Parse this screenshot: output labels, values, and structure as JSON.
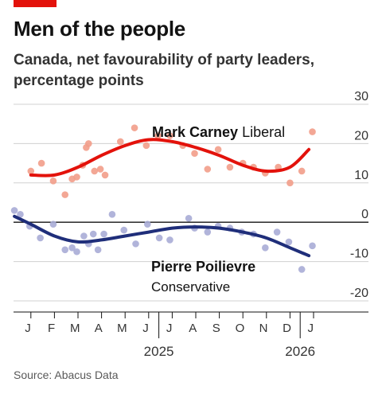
{
  "header": {
    "title": "Men of the people",
    "subtitle": "Canada, net favourability of party leaders, percentage points"
  },
  "source": "Source: Abacus Data",
  "colors": {
    "accent": "#e3120b",
    "carney_line": "#e3120b",
    "carney_points": "#f29d8a",
    "poilievre_line": "#1f2e7a",
    "poilievre_points": "#a9acd6",
    "gridline": "#d0d0d0",
    "zero_line": "#121212"
  },
  "chart_data": {
    "type": "scatter",
    "x_unit": "month_index (0 = start of Jan 2025)",
    "xlim": [
      -0.3,
      12.4
    ],
    "ylim": [
      -20,
      30
    ],
    "y_ticks": [
      30,
      20,
      10,
      0,
      -10,
      -20
    ],
    "y_tick_labels": [
      "30",
      "20",
      "10",
      "0",
      "-10",
      "-20"
    ],
    "x_month_labels": [
      "J",
      "F",
      "M",
      "A",
      "M",
      "J",
      "J",
      "A",
      "S",
      "O",
      "N",
      "D",
      "J"
    ],
    "x_year_labels": [
      {
        "label": "2025",
        "month": 6
      },
      {
        "label": "2026",
        "month": 12
      }
    ],
    "grid": true,
    "series": [
      {
        "name": "Mark Carney",
        "party": "Liberal",
        "points": [
          {
            "x": 0.5,
            "y": 13
          },
          {
            "x": 0.95,
            "y": 15
          },
          {
            "x": 1.45,
            "y": 10.5
          },
          {
            "x": 1.95,
            "y": 7
          },
          {
            "x": 2.25,
            "y": 11
          },
          {
            "x": 2.45,
            "y": 11.5
          },
          {
            "x": 2.7,
            "y": 14.5
          },
          {
            "x": 2.85,
            "y": 19
          },
          {
            "x": 2.95,
            "y": 20
          },
          {
            "x": 3.2,
            "y": 13
          },
          {
            "x": 3.45,
            "y": 13.5
          },
          {
            "x": 3.65,
            "y": 12
          },
          {
            "x": 4.3,
            "y": 20.5
          },
          {
            "x": 4.9,
            "y": 24
          },
          {
            "x": 5.4,
            "y": 19.5
          },
          {
            "x": 5.9,
            "y": 22
          },
          {
            "x": 6.4,
            "y": 22
          },
          {
            "x": 6.95,
            "y": 19.5
          },
          {
            "x": 7.45,
            "y": 17.5
          },
          {
            "x": 8.0,
            "y": 13.5
          },
          {
            "x": 8.45,
            "y": 18.5
          },
          {
            "x": 8.95,
            "y": 14
          },
          {
            "x": 9.5,
            "y": 15
          },
          {
            "x": 9.95,
            "y": 14
          },
          {
            "x": 10.45,
            "y": 12.5
          },
          {
            "x": 11.0,
            "y": 14
          },
          {
            "x": 11.5,
            "y": 10
          },
          {
            "x": 12.0,
            "y": 13
          },
          {
            "x": 12.45,
            "y": 23
          }
        ],
        "trend": [
          {
            "x": 0.5,
            "y": 12
          },
          {
            "x": 1.5,
            "y": 12
          },
          {
            "x": 2.5,
            "y": 14
          },
          {
            "x": 3.5,
            "y": 17
          },
          {
            "x": 4.5,
            "y": 19.5
          },
          {
            "x": 5.5,
            "y": 21
          },
          {
            "x": 6.5,
            "y": 20.5
          },
          {
            "x": 7.5,
            "y": 19
          },
          {
            "x": 8.5,
            "y": 17
          },
          {
            "x": 9.5,
            "y": 14.5
          },
          {
            "x": 10.5,
            "y": 13
          },
          {
            "x": 11.5,
            "y": 14
          },
          {
            "x": 12.3,
            "y": 18.5
          }
        ]
      },
      {
        "name": "Pierre Poilievre",
        "party": "Conservative",
        "points": [
          {
            "x": -0.2,
            "y": 3
          },
          {
            "x": 0.05,
            "y": 2
          },
          {
            "x": 0.45,
            "y": -1
          },
          {
            "x": 0.9,
            "y": -4
          },
          {
            "x": 1.45,
            "y": -0.5
          },
          {
            "x": 1.95,
            "y": -7
          },
          {
            "x": 2.25,
            "y": -6.5
          },
          {
            "x": 2.45,
            "y": -7.5
          },
          {
            "x": 2.75,
            "y": -3.5
          },
          {
            "x": 2.95,
            "y": -5.5
          },
          {
            "x": 3.15,
            "y": -3
          },
          {
            "x": 3.35,
            "y": -7
          },
          {
            "x": 3.6,
            "y": -3
          },
          {
            "x": 3.95,
            "y": 2
          },
          {
            "x": 4.45,
            "y": -2
          },
          {
            "x": 4.95,
            "y": -5.5
          },
          {
            "x": 5.45,
            "y": -0.5
          },
          {
            "x": 5.95,
            "y": -4
          },
          {
            "x": 6.4,
            "y": -4.5
          },
          {
            "x": 7.2,
            "y": 1
          },
          {
            "x": 7.45,
            "y": -1.5
          },
          {
            "x": 8.0,
            "y": -2.5
          },
          {
            "x": 8.45,
            "y": -1
          },
          {
            "x": 8.95,
            "y": -1.5
          },
          {
            "x": 9.45,
            "y": -2.5
          },
          {
            "x": 9.95,
            "y": -3
          },
          {
            "x": 10.45,
            "y": -6.5
          },
          {
            "x": 10.95,
            "y": -2.5
          },
          {
            "x": 11.45,
            "y": -5
          },
          {
            "x": 12.0,
            "y": -12
          },
          {
            "x": 12.45,
            "y": -6
          }
        ],
        "trend": [
          {
            "x": -0.2,
            "y": 1.5
          },
          {
            "x": 0.5,
            "y": -0.5
          },
          {
            "x": 1.5,
            "y": -3.5
          },
          {
            "x": 2.5,
            "y": -5
          },
          {
            "x": 3.5,
            "y": -4.5
          },
          {
            "x": 4.5,
            "y": -3.5
          },
          {
            "x": 5.5,
            "y": -2.5
          },
          {
            "x": 6.5,
            "y": -1.5
          },
          {
            "x": 7.5,
            "y": -1.2
          },
          {
            "x": 8.5,
            "y": -1.5
          },
          {
            "x": 9.5,
            "y": -2.5
          },
          {
            "x": 10.5,
            "y": -4
          },
          {
            "x": 11.5,
            "y": -6.5
          },
          {
            "x": 12.3,
            "y": -8.5
          }
        ]
      }
    ],
    "annotations": [
      {
        "name_text": "Mark Carney",
        "party_text": "Liberal"
      },
      {
        "name_text": "Pierre Poilievre",
        "party_text": "Conservative"
      }
    ]
  }
}
